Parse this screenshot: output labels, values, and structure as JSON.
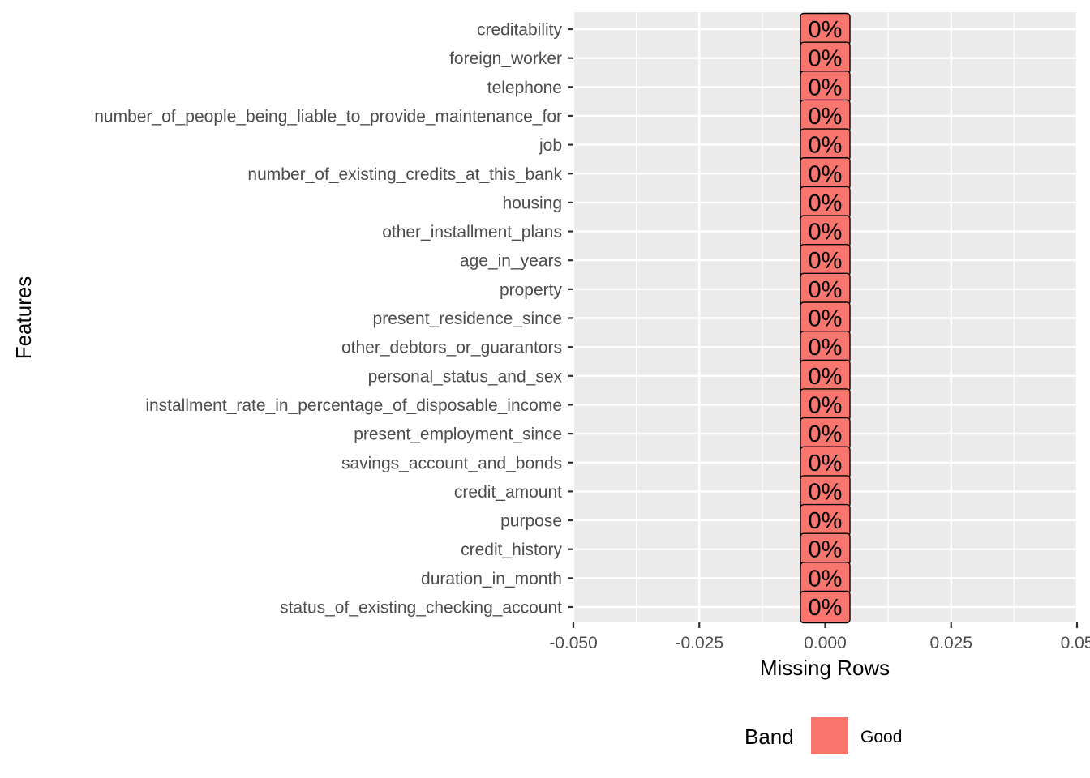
{
  "chart_data": {
    "type": "bar",
    "orientation": "horizontal",
    "categories": [
      "creditability",
      "foreign_worker",
      "telephone",
      "number_of_people_being_liable_to_provide_maintenance_for",
      "job",
      "number_of_existing_credits_at_this_bank",
      "housing",
      "other_installment_plans",
      "age_in_years",
      "property",
      "present_residence_since",
      "other_debtors_or_guarantors",
      "personal_status_and_sex",
      "installment_rate_in_percentage_of_disposable_income",
      "present_employment_since",
      "savings_account_and_bonds",
      "credit_amount",
      "purpose",
      "credit_history",
      "duration_in_month",
      "status_of_existing_checking_account"
    ],
    "values": [
      0,
      0,
      0,
      0,
      0,
      0,
      0,
      0,
      0,
      0,
      0,
      0,
      0,
      0,
      0,
      0,
      0,
      0,
      0,
      0,
      0
    ],
    "data_labels": [
      "0%",
      "0%",
      "0%",
      "0%",
      "0%",
      "0%",
      "0%",
      "0%",
      "0%",
      "0%",
      "0%",
      "0%",
      "0%",
      "0%",
      "0%",
      "0%",
      "0%",
      "0%",
      "0%",
      "0%",
      "0%"
    ],
    "bands": [
      "Good",
      "Good",
      "Good",
      "Good",
      "Good",
      "Good",
      "Good",
      "Good",
      "Good",
      "Good",
      "Good",
      "Good",
      "Good",
      "Good",
      "Good",
      "Good",
      "Good",
      "Good",
      "Good",
      "Good",
      "Good"
    ],
    "xlabel": "Missing Rows",
    "ylabel": "Features",
    "xlim": [
      -0.05,
      0.05
    ],
    "xticks": [
      -0.05,
      -0.025,
      0,
      0.025,
      0.05
    ],
    "xtick_labels": [
      "-0.050",
      "-0.025",
      "0.000",
      "0.025",
      "0.05"
    ],
    "grid": true,
    "legend": {
      "title": "Band",
      "position": "bottom",
      "items": [
        {
          "label": "Good",
          "color": "#F8766D"
        }
      ]
    },
    "colors": {
      "panel_background": "#EBEBEB",
      "grid_line": "#FFFFFF",
      "label_fill": "#F8766D",
      "label_border": "#000000",
      "axis_text": "#4D4D4D",
      "tick": "#333333",
      "title_text": "#000000"
    }
  }
}
